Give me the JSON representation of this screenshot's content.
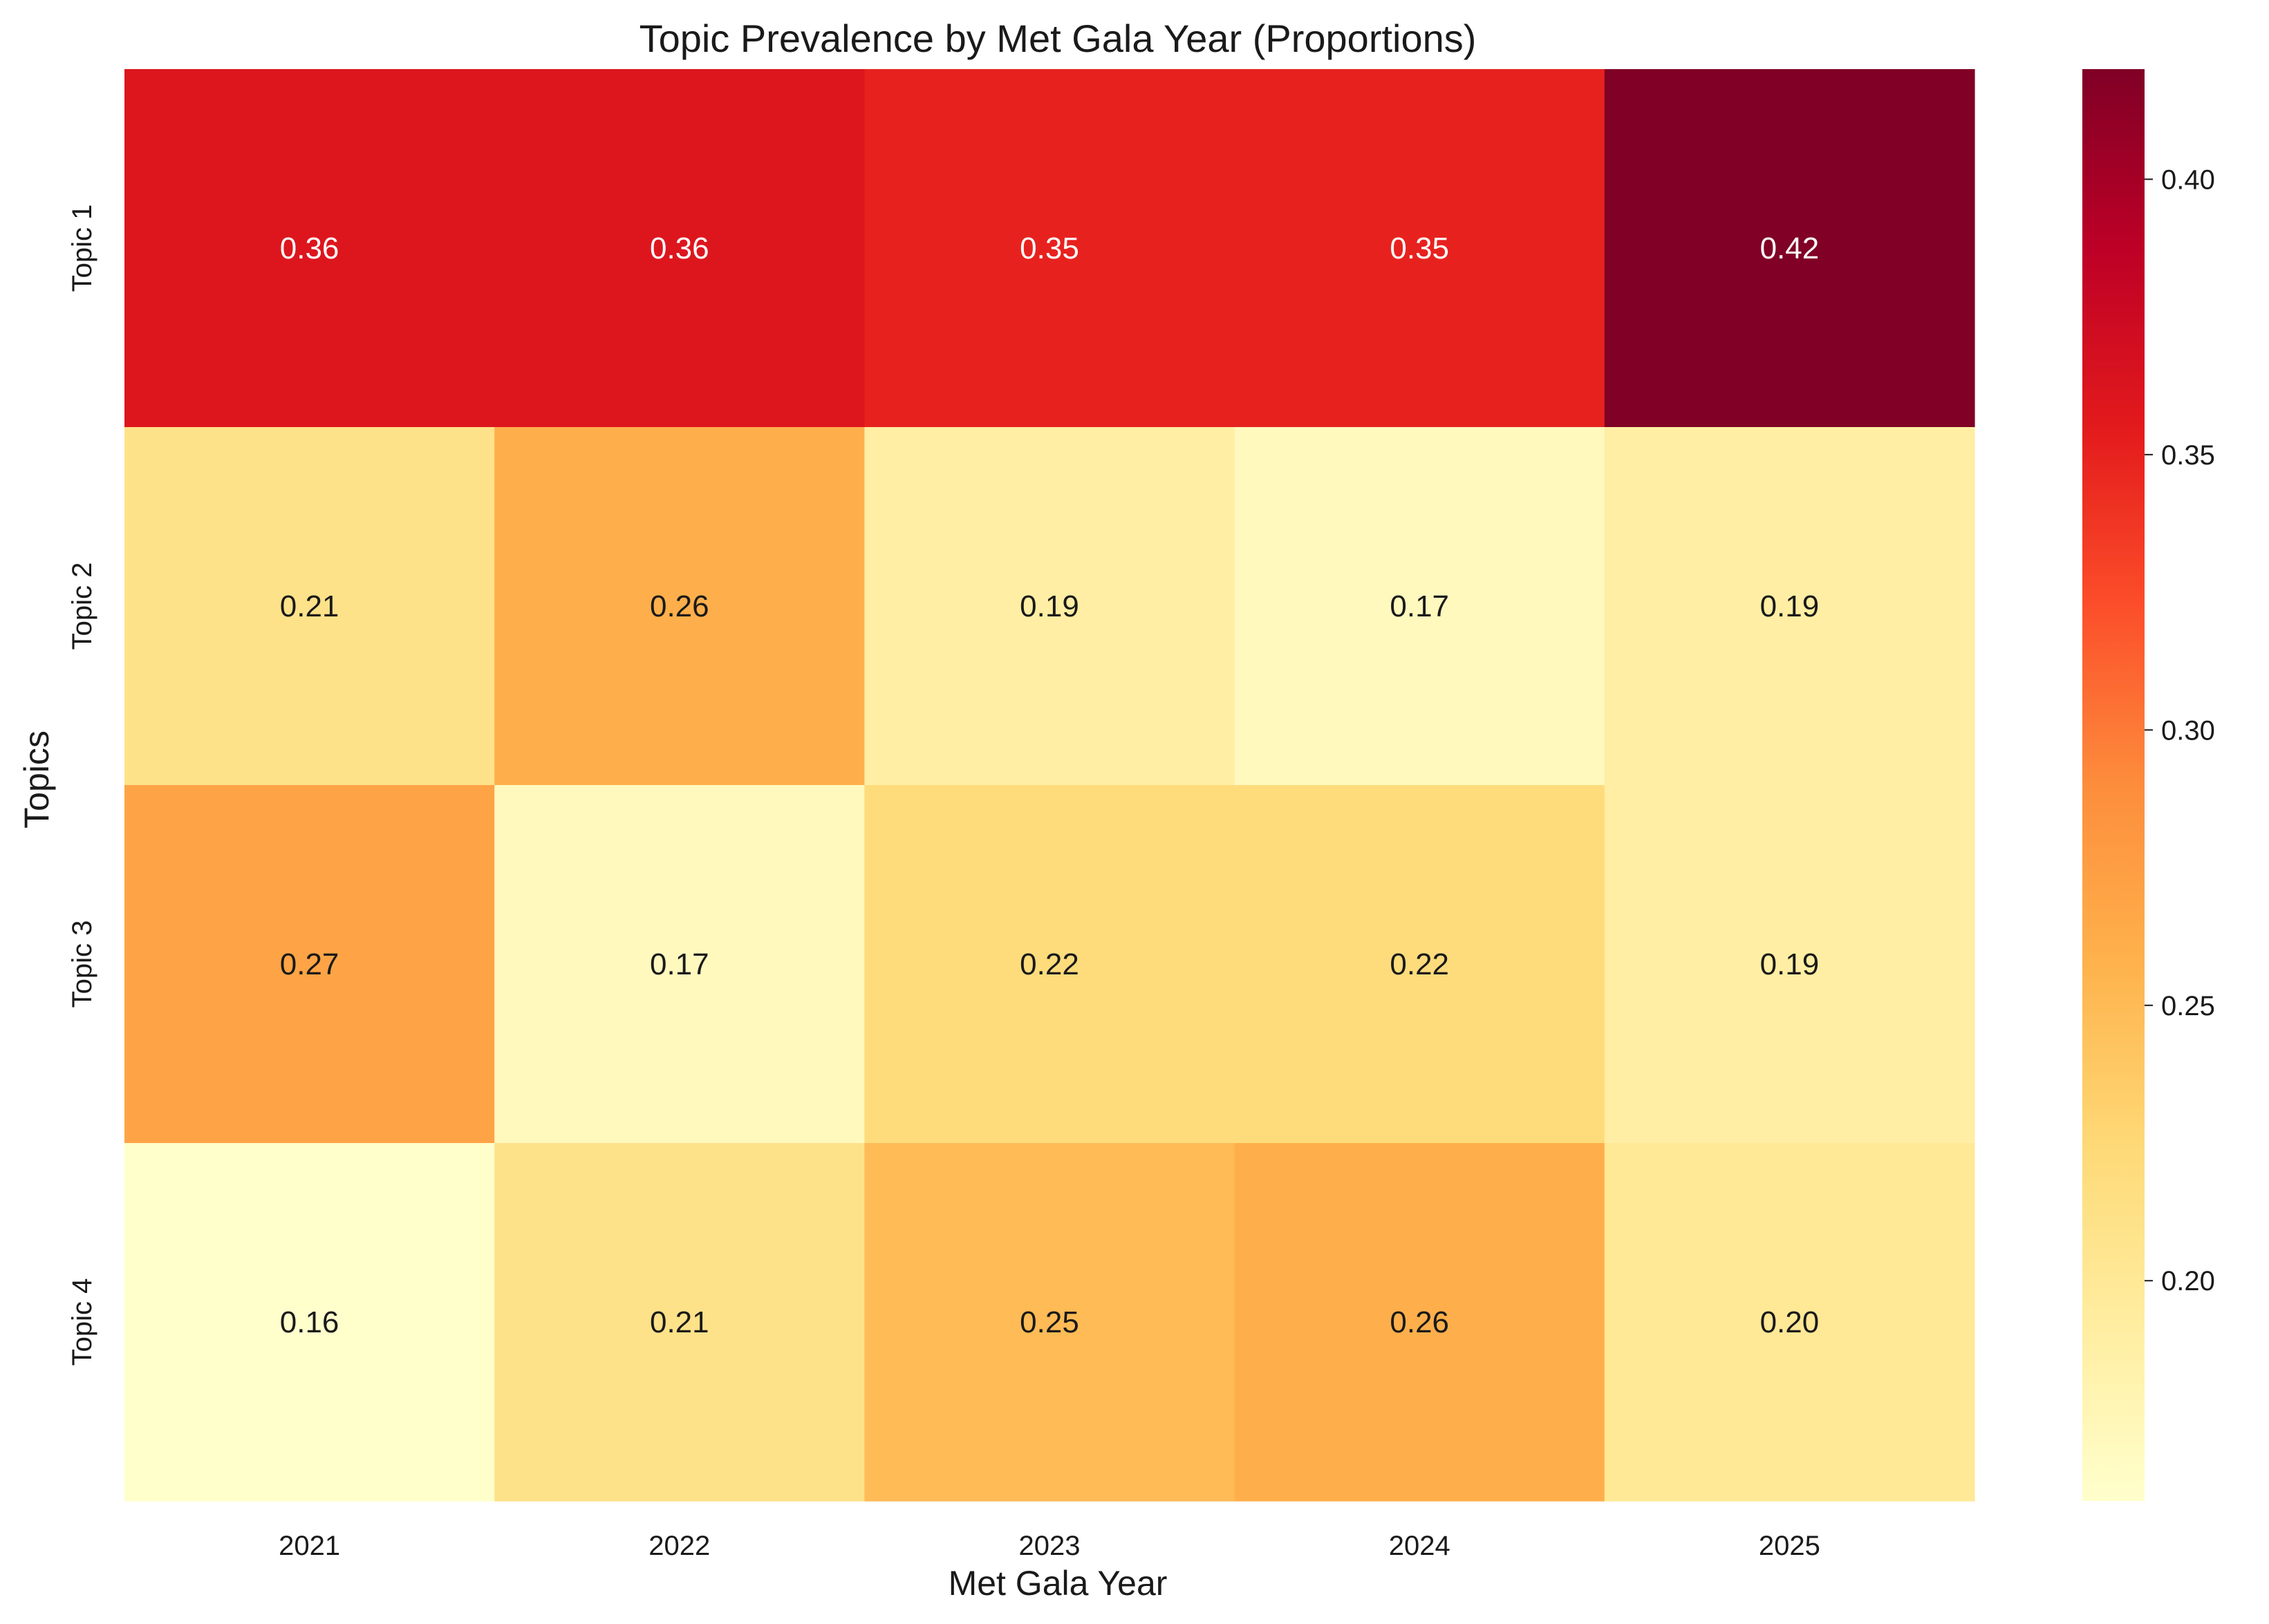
{
  "chart_data": {
    "type": "heatmap",
    "title": "Topic Prevalence by Met Gala Year (Proportions)",
    "xlabel": "Met Gala Year",
    "ylabel": "Topics",
    "x_categories": [
      "2021",
      "2022",
      "2023",
      "2024",
      "2025"
    ],
    "y_categories": [
      "Topic 1",
      "Topic 2",
      "Topic 3",
      "Topic 4"
    ],
    "values": [
      [
        0.36,
        0.36,
        0.35,
        0.35,
        0.42
      ],
      [
        0.21,
        0.26,
        0.19,
        0.17,
        0.19
      ],
      [
        0.27,
        0.17,
        0.22,
        0.22,
        0.19
      ],
      [
        0.16,
        0.21,
        0.25,
        0.26,
        0.2
      ]
    ],
    "value_labels": [
      [
        "0.36",
        "0.36",
        "0.35",
        "0.35",
        "0.42"
      ],
      [
        "0.21",
        "0.26",
        "0.19",
        "0.17",
        "0.19"
      ],
      [
        "0.27",
        "0.17",
        "0.22",
        "0.22",
        "0.19"
      ],
      [
        "0.16",
        "0.21",
        "0.25",
        "0.26",
        "0.20"
      ]
    ],
    "colorbar": {
      "range": [
        0.16,
        0.42
      ],
      "ticks": [
        0.2,
        0.25,
        0.3,
        0.35,
        0.4
      ],
      "tick_labels": [
        "0.20",
        "0.25",
        "0.30",
        "0.35",
        "0.40"
      ]
    },
    "colormap": "YlOrRd",
    "colormap_stops": [
      "#ffffcc",
      "#ffeda0",
      "#fed976",
      "#feb24c",
      "#fd8d3c",
      "#fc4e2a",
      "#e31a1c",
      "#bd0026",
      "#800026"
    ],
    "text_color_dark": "#1a1a1a",
    "text_color_light": "#ffffff",
    "grid": false
  }
}
